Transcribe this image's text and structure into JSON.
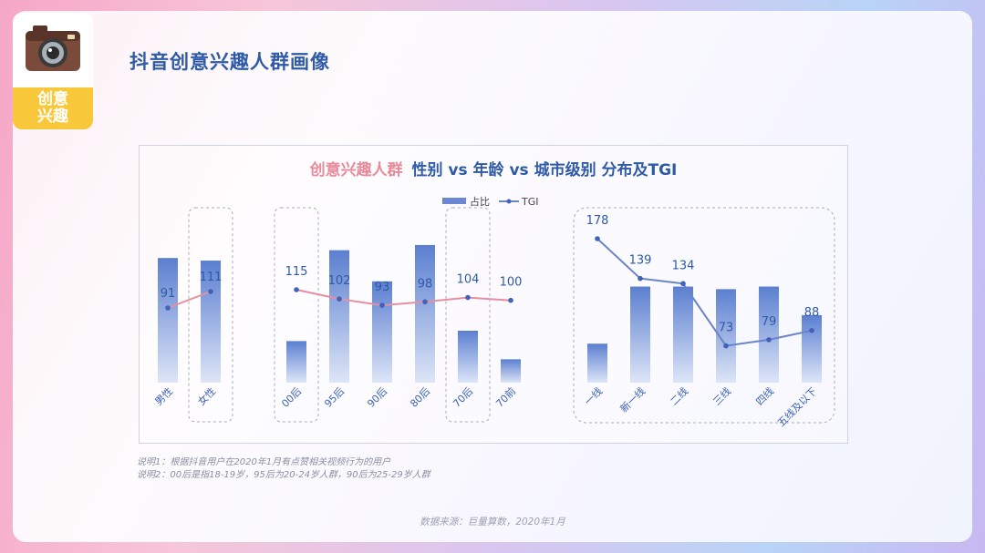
{
  "page": {
    "title": "抖音创意兴趣人群画像",
    "badge": {
      "line1": "创意",
      "line2": "兴趣"
    },
    "note1": "说明1：根据抖音用户在2020年1月有点赞相关视频行为的用户",
    "note2": "说明2：00后是指18-19岁，95后为20-24岁人群，90后为25-29岁人群",
    "source": "数据来源：巨量算数，2020年1月"
  },
  "colors": {
    "title_pink": "#e88a9a",
    "title_blue": "#2f5aa8",
    "bar_top": "#5b7fd0",
    "bar_bottom": "#dde5f7",
    "line_pink": "#e58fa0",
    "line_blue": "#6b83c9",
    "dot": "#3e63b8"
  },
  "chart_data": {
    "type": "bar",
    "title_pink": "创意兴趣人群",
    "title_rest": "性别 vs 年龄 vs 城市级别 分布及TGI",
    "legend": {
      "bar": "占比",
      "line": "TGI"
    },
    "groups": [
      {
        "name": "gender",
        "categories": [
          "男性",
          "女性"
        ],
        "share": [
          48,
          47
        ],
        "tgi": [
          91,
          111
        ]
      },
      {
        "name": "age",
        "categories": [
          "00后",
          "95后",
          "90后",
          "80后",
          "70后",
          "70前"
        ],
        "share": [
          16,
          51,
          39,
          53,
          20,
          9
        ],
        "tgi": [
          115,
          102,
          93,
          98,
          104,
          100
        ]
      },
      {
        "name": "city",
        "categories": [
          "一线",
          "新一线",
          "二线",
          "三线",
          "四线",
          "五线及以下"
        ],
        "share": [
          15,
          37,
          37,
          36,
          37,
          26
        ],
        "tgi": [
          178,
          139,
          134,
          73,
          79,
          88
        ]
      }
    ]
  }
}
